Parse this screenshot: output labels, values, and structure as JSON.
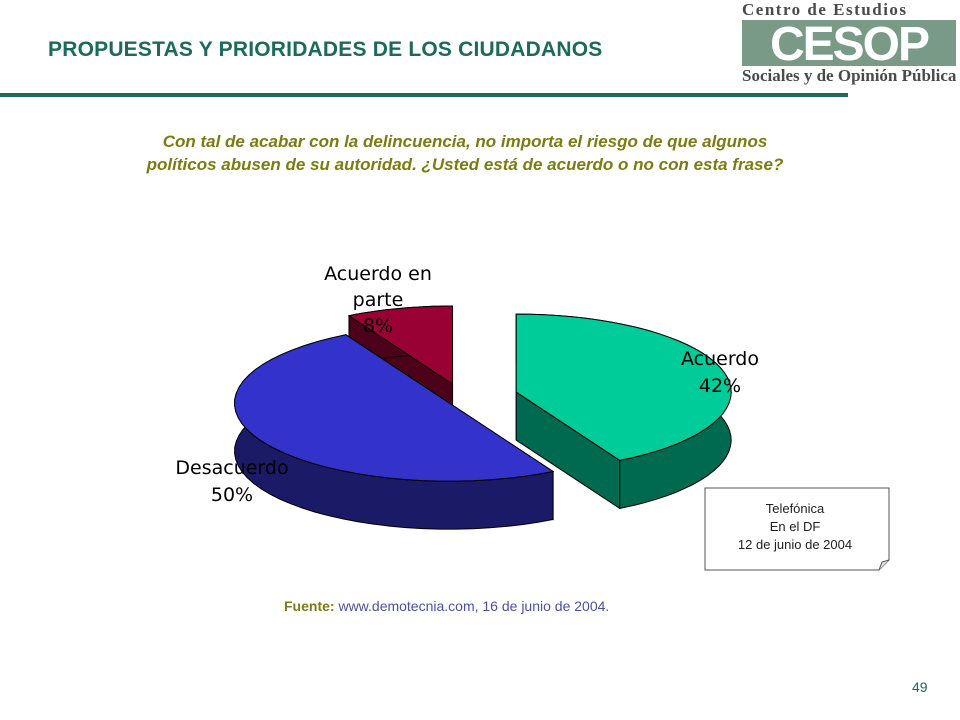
{
  "header": {
    "title": "PROPUESTAS Y PRIORIDADES DE LOS CIUDADANOS",
    "logo": {
      "top_text": "Centro de Estudios",
      "mark_text": "CESOP",
      "bottom_text": "Sociales y de Opinión Pública"
    }
  },
  "question": "Con tal de acabar con la delincuencia, no importa el riesgo de que algunos políticos abusen de su autoridad. ¿Usted está de acuerdo o no con esta frase?",
  "chart_data": {
    "type": "pie",
    "title": "",
    "style": "3d-exploded",
    "slices": [
      {
        "label": "Acuerdo",
        "value": 42,
        "display": "42%",
        "color_top": "#00cc99",
        "color_side": "#006a50"
      },
      {
        "label": "Desacuerdo",
        "value": 50,
        "display": "50%",
        "color_top": "#3333cc",
        "color_side": "#1a1a66"
      },
      {
        "label": "Acuerdo en parte",
        "value": 8,
        "display": "8%",
        "color_top": "#990033",
        "color_side": "#4d0019"
      }
    ]
  },
  "note": {
    "lines": [
      "Telefónica",
      "En el DF",
      "12 de junio de 2004"
    ]
  },
  "source": {
    "prefix": "Fuente:",
    "text": "www.demotecnia.com, 16 de junio de 2004."
  },
  "page_number": "49"
}
